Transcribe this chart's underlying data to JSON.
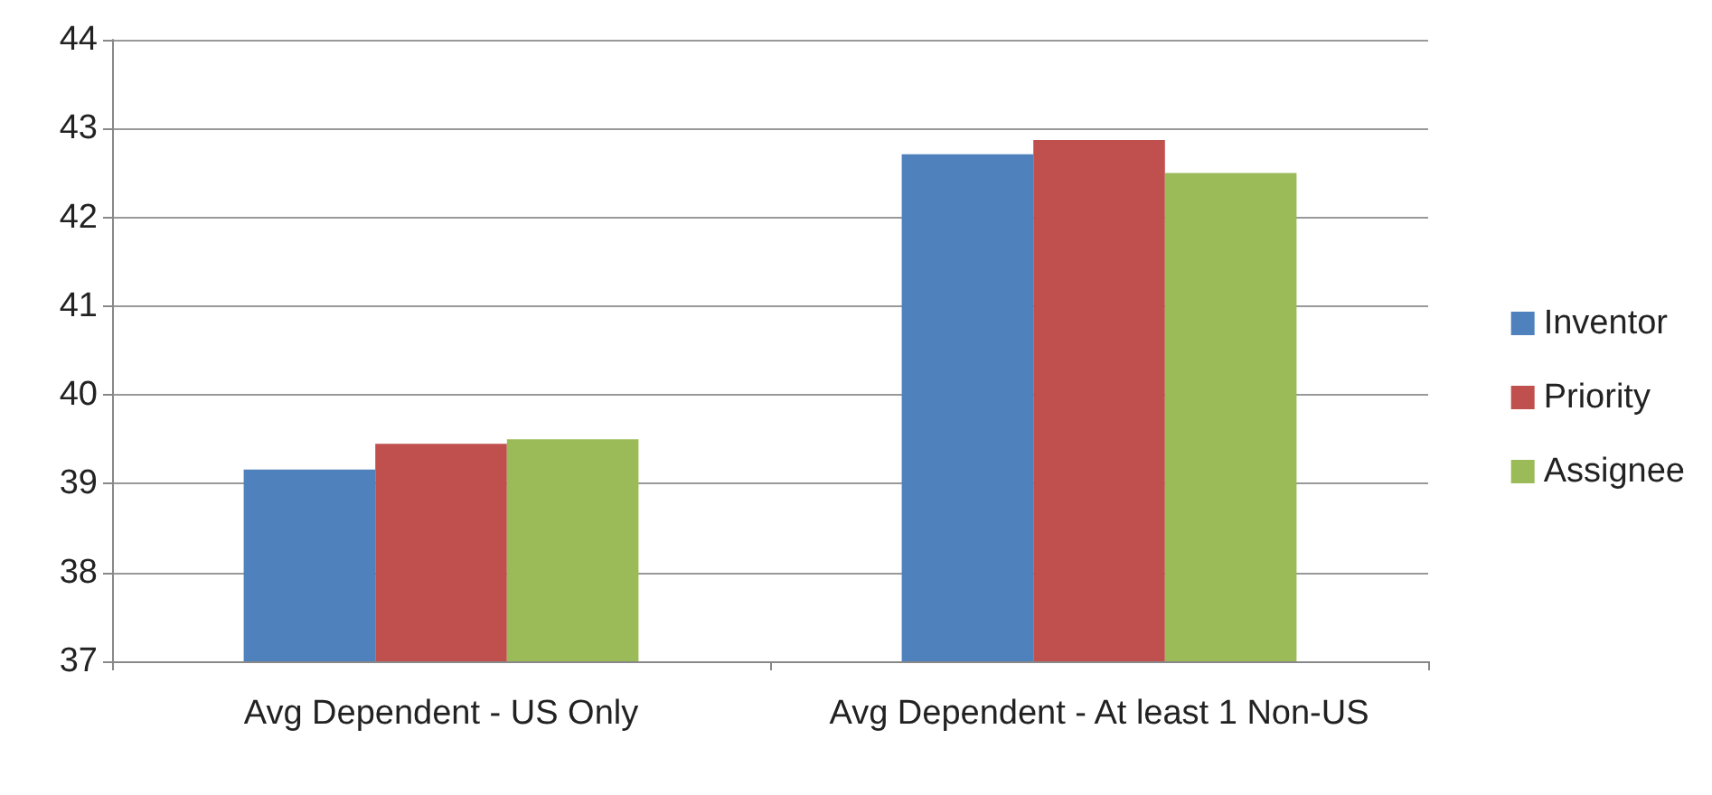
{
  "chart_data": {
    "type": "bar",
    "categories": [
      "Avg Dependent - US Only",
      "Avg Dependent - At least 1 Non-US"
    ],
    "series": [
      {
        "name": "Inventor",
        "color": "#4f81bd",
        "values": [
          39.16,
          42.71
        ]
      },
      {
        "name": "Priority",
        "color": "#c0504d",
        "values": [
          39.45,
          42.87
        ]
      },
      {
        "name": "Assignee",
        "color": "#9bbb59",
        "values": [
          39.5,
          42.5
        ]
      }
    ],
    "ylim": [
      37,
      44
    ],
    "yticks": [
      37,
      38,
      39,
      40,
      41,
      42,
      43,
      44
    ],
    "grid": "y",
    "legend": "right"
  }
}
